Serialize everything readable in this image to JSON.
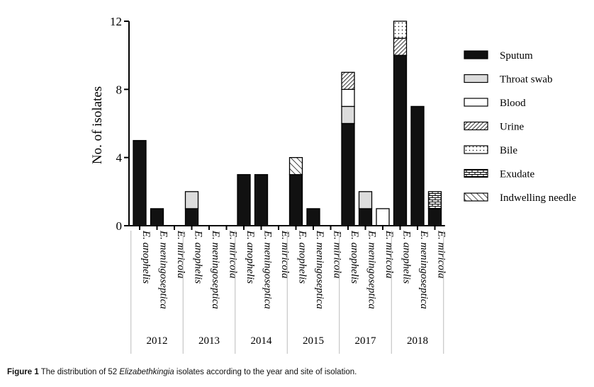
{
  "chart_data": {
    "type": "bar",
    "stacked": true,
    "ylabel": "No. of isolates",
    "ylim": [
      0,
      12
    ],
    "yticks": [
      0,
      4,
      8,
      12
    ],
    "groups": [
      {
        "year": "2012",
        "species": [
          "E. anophelis",
          "E. meningoseptica",
          "E. miricola"
        ]
      },
      {
        "year": "2013",
        "species": [
          "E. anophelis",
          "E. meningoseptica",
          "E. miricola"
        ]
      },
      {
        "year": "2014",
        "species": [
          "E. anophelis",
          "E. meningoseptica",
          "E. miricola"
        ]
      },
      {
        "year": "2015",
        "species": [
          "E. anophelis",
          "E. meningoseptica",
          "E. miricola"
        ]
      },
      {
        "year": "2017",
        "species": [
          "E. anophelis",
          "E. meningoseptica",
          "E. miricola"
        ]
      },
      {
        "year": "2018",
        "species": [
          "E. anophelis",
          "E. meningoseptica",
          "E. miricola"
        ]
      }
    ],
    "series": [
      {
        "name": "Sputum",
        "pattern": "solid-black",
        "values": [
          5,
          1,
          0,
          1,
          0,
          0,
          3,
          3,
          0,
          3,
          1,
          0,
          6,
          1,
          0,
          10,
          7,
          1
        ]
      },
      {
        "name": "Throat swab",
        "pattern": "light-gray",
        "values": [
          0,
          0,
          0,
          1,
          0,
          0,
          0,
          0,
          0,
          0,
          0,
          0,
          1,
          1,
          0,
          0,
          0,
          0
        ]
      },
      {
        "name": "Blood",
        "pattern": "white",
        "values": [
          0,
          0,
          0,
          0,
          0,
          0,
          0,
          0,
          0,
          0,
          0,
          0,
          1,
          0,
          1,
          0,
          0,
          0
        ]
      },
      {
        "name": "Urine",
        "pattern": "dense-diagonal",
        "values": [
          0,
          0,
          0,
          0,
          0,
          0,
          0,
          0,
          0,
          0,
          0,
          0,
          1,
          0,
          0,
          1,
          0,
          0
        ]
      },
      {
        "name": "Bile",
        "pattern": "dots",
        "values": [
          0,
          0,
          0,
          0,
          0,
          0,
          0,
          0,
          0,
          0,
          0,
          0,
          0,
          0,
          0,
          1,
          0,
          0
        ]
      },
      {
        "name": "Exudate",
        "pattern": "brick",
        "values": [
          0,
          0,
          0,
          0,
          0,
          0,
          0,
          0,
          0,
          0,
          0,
          0,
          0,
          0,
          0,
          0,
          0,
          1
        ]
      },
      {
        "name": "Indwelling needle",
        "pattern": "wide-diagonal",
        "values": [
          0,
          0,
          0,
          0,
          0,
          0,
          0,
          0,
          0,
          1,
          0,
          0,
          0,
          0,
          0,
          0,
          0,
          0
        ]
      }
    ],
    "legend_position": "right"
  },
  "caption": {
    "label": "Figure 1",
    "text_before": "The distribution of 52 ",
    "genus": "Elizabethkingia",
    "text_after": " isolates according to the year and site of isolation."
  }
}
